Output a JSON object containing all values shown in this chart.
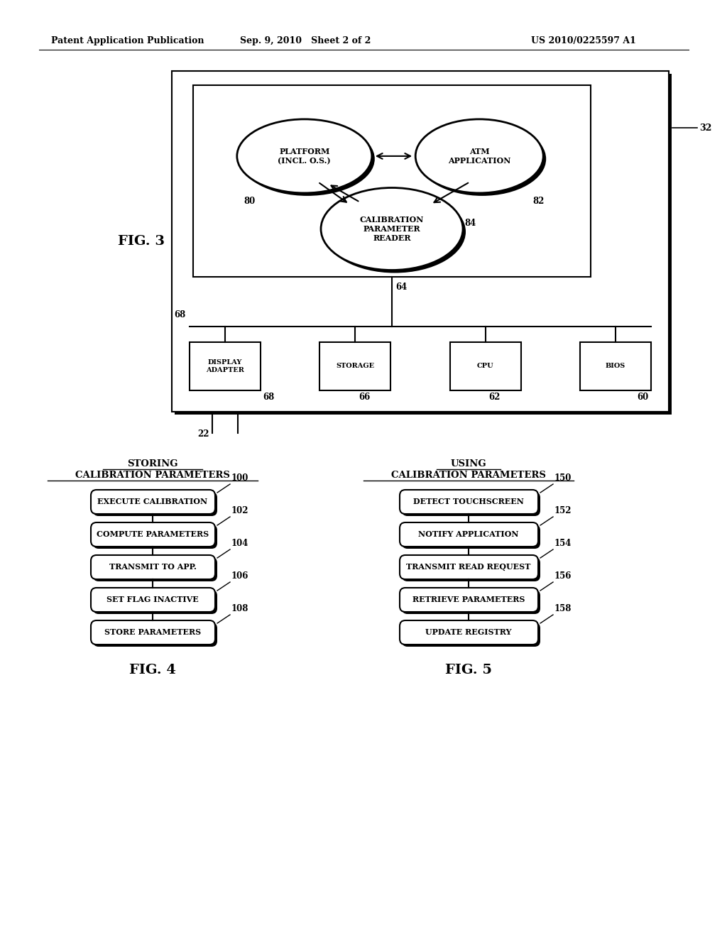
{
  "bg_color": "#ffffff",
  "header_left": "Patent Application Publication",
  "header_mid": "Sep. 9, 2010   Sheet 2 of 2",
  "header_right": "US 2010/0225597 A1",
  "fig3_label": "FIG. 3",
  "fig3_platform_label": "PLATFORM\n(INCL. O.S.)",
  "fig3_platform_ref": "80",
  "fig3_atm_label": "ATM\nAPPLICATION",
  "fig3_atm_ref": "82",
  "fig3_cal_label": "CALIBRATION\nPARAMETER\nREADER",
  "fig3_cal_ref": "84",
  "fig3_ref32": "32",
  "fig3_ref22": "22",
  "fig3_ref64": "64",
  "fig3_ref68": "68",
  "fig3_boxes": [
    {
      "label": "DISPLAY\nADAPTER",
      "ref": "68"
    },
    {
      "label": "STORAGE",
      "ref": "66"
    },
    {
      "label": "CPU",
      "ref": "62"
    },
    {
      "label": "BIOS",
      "ref": "60"
    }
  ],
  "fig4_title1": "STORING",
  "fig4_title2": "CALIBRATION PARAMETERS",
  "fig4_steps": [
    {
      "label": "EXECUTE CALIBRATION",
      "ref": "100"
    },
    {
      "label": "COMPUTE PARAMETERS",
      "ref": "102"
    },
    {
      "label": "TRANSMIT TO APP.",
      "ref": "104"
    },
    {
      "label": "SET FLAG INACTIVE",
      "ref": "106"
    },
    {
      "label": "STORE PARAMETERS",
      "ref": "108"
    }
  ],
  "fig4_label": "FIG. 4",
  "fig5_title1": "USING",
  "fig5_title2": "CALIBRATION PARAMETERS",
  "fig5_steps": [
    {
      "label": "DETECT TOUCHSCREEN",
      "ref": "150"
    },
    {
      "label": "NOTIFY APPLICATION",
      "ref": "152"
    },
    {
      "label": "TRANSMIT READ REQUEST",
      "ref": "154"
    },
    {
      "label": "RETRIEVE PARAMETERS",
      "ref": "156"
    },
    {
      "label": "UPDATE REGISTRY",
      "ref": "158"
    }
  ],
  "fig5_label": "FIG. 5"
}
